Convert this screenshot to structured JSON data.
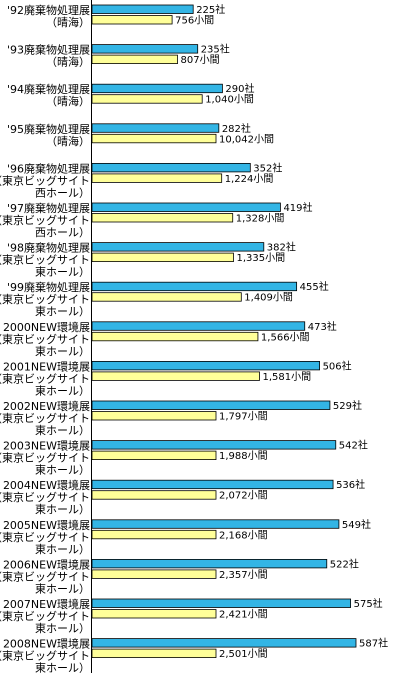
{
  "chart_data": {
    "type": "bar",
    "orientation": "horizontal",
    "categories": [
      [
        "'92廃棄物処理展",
        "（晴海）"
      ],
      [
        "'93廃棄物処理展",
        "（晴海）"
      ],
      [
        "'94廃棄物処理展",
        "（晴海）"
      ],
      [
        "'95廃棄物処理展",
        "（晴海）"
      ],
      [
        "'96廃棄物処理展",
        "（東京ビッグサイト",
        "西ホール）"
      ],
      [
        "'97廃棄物処理展",
        "（東京ビッグサイト",
        "西ホール）"
      ],
      [
        "'98廃棄物処理展",
        "（東京ビッグサイト",
        "東ホール）"
      ],
      [
        "'99廃棄物処理展",
        "（東京ビッグサイト",
        "東ホール）"
      ],
      [
        "2000NEW環境展",
        "（東京ビッグサイト",
        "東ホール）"
      ],
      [
        "2001NEW環境展",
        "（東京ビッグサイト",
        "東ホール）"
      ],
      [
        "2002NEW環境展",
        "（東京ビッグサイト",
        "東ホール）"
      ],
      [
        "2003NEW環境展",
        "（東京ビッグサイト",
        "東ホール）"
      ],
      [
        "2004NEW環境展",
        "（東京ビッグサイト",
        "東ホール）"
      ],
      [
        "2005NEW環境展",
        "（東京ビッグサイト",
        "東ホール）"
      ],
      [
        "2006NEW環境展",
        "（東京ビッグサイト",
        "東ホール）"
      ],
      [
        "2007NEW環境展",
        "（東京ビッグサイト",
        "東ホール）"
      ],
      [
        "2008NEW環境展",
        "（東京ビッグサイト",
        "東ホール）"
      ]
    ],
    "series": [
      {
        "color": "#33b5e5",
        "values": [
          225,
          235,
          290,
          282,
          352,
          419,
          382,
          455,
          473,
          506,
          529,
          542,
          536,
          549,
          522,
          575,
          587
        ],
        "labels": [
          "225社",
          "235社",
          "290社",
          "282社",
          "352社",
          "419社",
          "382社",
          "455社",
          "473社",
          "506社",
          "529社",
          "542社",
          "536社",
          "549社",
          "522社",
          "575社",
          "587社"
        ]
      },
      {
        "color": "#ffff99",
        "values": [
          756,
          807,
          1040,
          10042,
          1224,
          1328,
          1335,
          1409,
          1566,
          1581,
          1797,
          1988,
          2072,
          2168,
          2357,
          2421,
          2501
        ],
        "labels": [
          "756小間",
          "807小間",
          "1,040小間",
          "10,042小間",
          "1,224小間",
          "1,328小間",
          "1,335小間",
          "1,409小間",
          "1,566小間",
          "1,581小間",
          "1,797小間",
          "1,988小間",
          "2,072小間",
          "2,168小間",
          "2,357小間",
          "2,421小間",
          "2,501小間"
        ]
      }
    ],
    "title": "",
    "xlabel": "",
    "ylabel": "",
    "grid": false,
    "legend": "none"
  }
}
